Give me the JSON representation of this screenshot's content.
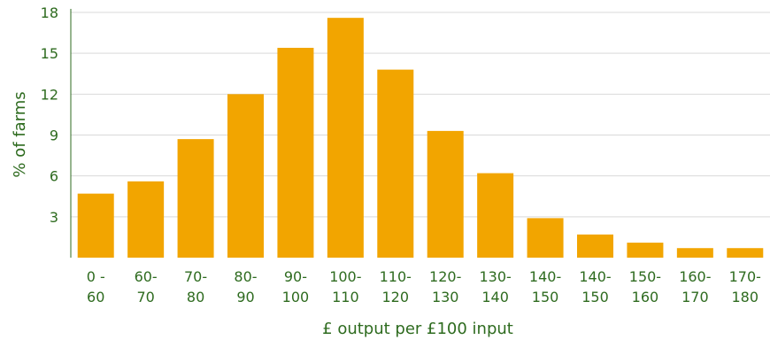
{
  "chart_data": {
    "type": "bar",
    "categories": [
      [
        "0 -",
        "60"
      ],
      [
        "60-",
        "70"
      ],
      [
        "70-",
        "80"
      ],
      [
        "80-",
        "90"
      ],
      [
        "90-",
        "100"
      ],
      [
        "100-",
        "110"
      ],
      [
        "110-",
        "120"
      ],
      [
        "120-",
        "130"
      ],
      [
        "130-",
        "140"
      ],
      [
        "140-",
        "150"
      ],
      [
        "140-",
        "150"
      ],
      [
        "150-",
        "160"
      ],
      [
        "160-",
        "170"
      ],
      [
        "170-",
        "180"
      ]
    ],
    "values": [
      4.7,
      5.6,
      8.7,
      12.0,
      15.4,
      17.6,
      13.8,
      9.3,
      6.2,
      2.9,
      1.7,
      1.1,
      0.7,
      0.7
    ],
    "title": "",
    "xlabel": "£ output per £100 input",
    "ylabel": "% of farms",
    "ylim": [
      0,
      18
    ],
    "yticks": [
      3,
      6,
      9,
      12,
      15,
      18
    ],
    "grid": true,
    "bar_color": "#f2a500",
    "grid_color": "#d9d9d9",
    "axis_color": "#2e6b1f",
    "text_color": "#2e6b1f"
  }
}
